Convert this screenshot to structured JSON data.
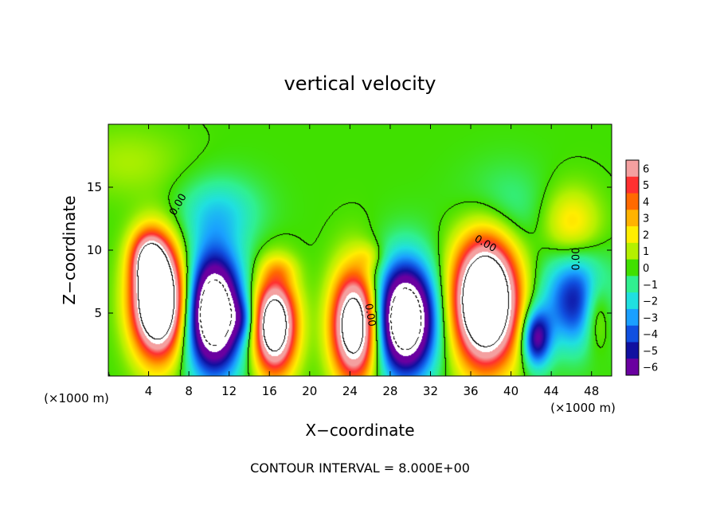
{
  "chart_data": {
    "type": "heatmap",
    "title": "vertical velocity",
    "xlabel": "X−coordinate",
    "ylabel": "Z−coordinate",
    "x_unit_left": "(×1000 m)",
    "x_unit_right": "(×1000 m)",
    "xlim": [
      0,
      50
    ],
    "ylim": [
      0,
      20
    ],
    "x_ticks": [
      4,
      8,
      12,
      16,
      20,
      24,
      28,
      32,
      36,
      40,
      44,
      48
    ],
    "y_ticks": [
      5,
      10,
      15
    ],
    "footer": "CONTOUR INTERVAL = 8.000E+00",
    "contour_labels": [
      "0.00",
      "0.00",
      "0.00",
      "0.00"
    ],
    "colorbar": {
      "levels": [
        6,
        5,
        4,
        3,
        2,
        1,
        0,
        -1,
        -2,
        -3,
        -4,
        -5,
        -6
      ],
      "labels": [
        "6",
        "5",
        "4",
        "3",
        "2",
        "1",
        "0",
        "−1",
        "−2",
        "−3",
        "−4",
        "−5",
        "−6"
      ],
      "colors": [
        "#f4a0a0",
        "#ff3030",
        "#ff6a00",
        "#ffb300",
        "#ffee00",
        "#b4f000",
        "#40e000",
        "#30f090",
        "#20e0e0",
        "#1aa0ff",
        "#1050e0",
        "#1010a0",
        "#6a00a0"
      ]
    },
    "field": {
      "background": "#33e033",
      "cells": [
        {
          "x": 5.0,
          "z": 6.0,
          "sx": 1.8,
          "sz": 3.0,
          "w": 14
        },
        {
          "x": 4.0,
          "z": 9.5,
          "sx": 1.2,
          "sz": 1.5,
          "w": 5
        },
        {
          "x": 10.5,
          "z": 5.0,
          "sx": 2.0,
          "sz": 3.3,
          "w": -11
        },
        {
          "x": 16.5,
          "z": 4.0,
          "sx": 1.5,
          "sz": 2.6,
          "w": 11
        },
        {
          "x": 24.5,
          "z": 4.0,
          "sx": 1.6,
          "sz": 3.0,
          "w": 11
        },
        {
          "x": 29.5,
          "z": 4.5,
          "sx": 2.1,
          "sz": 3.1,
          "w": -11
        },
        {
          "x": 37.5,
          "z": 6.0,
          "sx": 2.2,
          "sz": 3.5,
          "w": 14
        },
        {
          "x": 42.5,
          "z": 3.0,
          "sx": 1.0,
          "sz": 1.6,
          "w": -6
        },
        {
          "x": 46.5,
          "z": 6.0,
          "sx": 2.3,
          "sz": 2.6,
          "w": -5
        },
        {
          "x": 48.5,
          "z": 5.0,
          "sx": 1.0,
          "sz": 2.0,
          "w": 3
        },
        {
          "x": 13.5,
          "z": 4.5,
          "sx": 0.9,
          "sz": 1.2,
          "w": -2
        },
        {
          "x": 11.0,
          "z": 13.0,
          "sx": 3.0,
          "sz": 2.0,
          "w": -2
        },
        {
          "x": 39.0,
          "z": 13.0,
          "sx": 3.0,
          "sz": 2.5,
          "w": -1.5
        },
        {
          "x": 46.0,
          "z": 12.0,
          "sx": 2.0,
          "sz": 2.0,
          "w": 2.5
        },
        {
          "x": 17.0,
          "z": 8.5,
          "sx": 1.2,
          "sz": 0.8,
          "w": 1.3
        },
        {
          "x": 26.0,
          "z": 9.5,
          "sx": 1.0,
          "sz": 0.8,
          "w": 1.2
        },
        {
          "x": 2.0,
          "z": 17.0,
          "sx": 4.0,
          "sz": 2.0,
          "w": 0.9
        }
      ]
    }
  }
}
